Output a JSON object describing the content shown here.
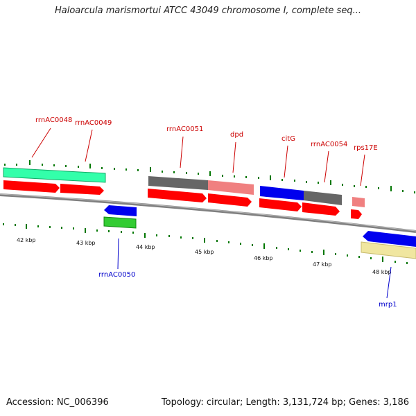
{
  "title": "Haloarcula marismortui ATCC 43049 chromosome I, complete seq...",
  "footer": {
    "accession": "Accession: NC_006396",
    "summary": "Topology: circular; Length: 3,131,724 bp; Genes: 3,186"
  },
  "colors": {
    "label_top": "#cc0000",
    "label_bottom": "#0000cc",
    "cds": "#ff0000",
    "rrna": "#33ffaa",
    "trna": "#33cc33",
    "gray": "#666666",
    "pink": "#f08080",
    "blue": "#0000ee",
    "khaki": "#f0e6a0",
    "tick": "#007700"
  },
  "gene_labels": {
    "rrnAC0048": "rrnAC0048",
    "rrnAC0049": "rrnAC0049",
    "rrnAC0050": "rrnAC0050",
    "rrnAC0051": "rrnAC0051",
    "dpd": "dpd",
    "citG": "citG",
    "rrnAC0054": "rrnAC0054",
    "rps17E": "rps17E",
    "mrp1": "mrp1"
  },
  "kbp_labels": {
    "k42": "42 kbp",
    "k43": "43 kbp",
    "k44": "44 kbp",
    "k45": "45 kbp",
    "k46": "46 kbp",
    "k47": "47 kbp",
    "k48": "48 kbp"
  }
}
